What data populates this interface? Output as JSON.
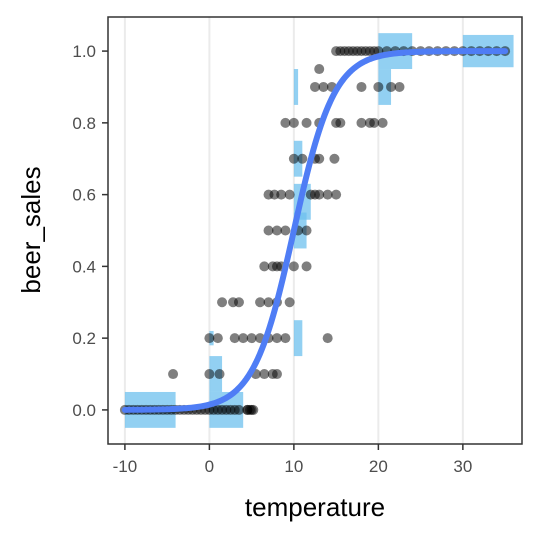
{
  "chart_data": {
    "type": "scatter",
    "title": "",
    "xlabel": "temperature",
    "ylabel": "beer_sales",
    "xlim": [
      -12,
      37
    ],
    "ylim": [
      -0.095,
      1.095
    ],
    "x_ticks": [
      -10,
      0,
      10,
      20,
      30
    ],
    "x_tick_labels": [
      "-10",
      "0",
      "10",
      "20",
      "30"
    ],
    "y_ticks": [
      0.0,
      0.2,
      0.4,
      0.6,
      0.8,
      1.0
    ],
    "y_tick_labels": [
      "0.0",
      "0.2",
      "0.4",
      "0.6",
      "0.8",
      "1.0"
    ],
    "grid": "vertical-major",
    "legend": "none",
    "colors": {
      "points": "#000000",
      "curve": "#4f7df5",
      "density_bars": "#6ec0ed",
      "grid": "#ebebeb",
      "panel_border": "#333333"
    },
    "series": [
      {
        "type": "scatter",
        "points": [
          [
            -10,
            0
          ],
          [
            -9.5,
            0
          ],
          [
            -9,
            0
          ],
          [
            -8.5,
            0
          ],
          [
            -8,
            0
          ],
          [
            -7.5,
            0
          ],
          [
            -7,
            0
          ],
          [
            -6.5,
            0
          ],
          [
            -6,
            0
          ],
          [
            -5.5,
            0
          ],
          [
            -5,
            0
          ],
          [
            -4.5,
            0
          ],
          [
            -4,
            0
          ],
          [
            -3.5,
            0
          ],
          [
            -3,
            0
          ],
          [
            -2.5,
            0
          ],
          [
            -2,
            0
          ],
          [
            -1.5,
            0
          ],
          [
            -1,
            0
          ],
          [
            -0.5,
            0
          ],
          [
            0,
            0
          ],
          [
            0.5,
            0
          ],
          [
            1,
            0
          ],
          [
            1.5,
            0
          ],
          [
            2,
            0
          ],
          [
            2.5,
            0
          ],
          [
            3,
            0
          ],
          [
            3.5,
            0
          ],
          [
            4.5,
            0
          ],
          [
            5,
            0
          ],
          [
            -4.3,
            0.1
          ],
          [
            0,
            0.1
          ],
          [
            1.2,
            0.1
          ],
          [
            5.5,
            0.1
          ],
          [
            6.5,
            0.1
          ],
          [
            7.5,
            0.1
          ],
          [
            8,
            0.1
          ],
          [
            0,
            0.2
          ],
          [
            1,
            0.2
          ],
          [
            3,
            0.2
          ],
          [
            4,
            0.2
          ],
          [
            5,
            0.2
          ],
          [
            6,
            0.2
          ],
          [
            7,
            0.2
          ],
          [
            8,
            0.2
          ],
          [
            9,
            0.2
          ],
          [
            1.5,
            0.3
          ],
          [
            2.8,
            0.3
          ],
          [
            3.5,
            0.3
          ],
          [
            6,
            0.3
          ],
          [
            7,
            0.3
          ],
          [
            8,
            0.3
          ],
          [
            9.5,
            0.3
          ],
          [
            6.5,
            0.4
          ],
          [
            7.5,
            0.4
          ],
          [
            8,
            0.4
          ],
          [
            8.5,
            0.4
          ],
          [
            10,
            0.4
          ],
          [
            11.5,
            0.4
          ],
          [
            7,
            0.5
          ],
          [
            8,
            0.5
          ],
          [
            9,
            0.5
          ],
          [
            10.5,
            0.5
          ],
          [
            11.5,
            0.5
          ],
          [
            7,
            0.6
          ],
          [
            7.7,
            0.6
          ],
          [
            8.5,
            0.6
          ],
          [
            9.5,
            0.6
          ],
          [
            12,
            0.6
          ],
          [
            12.5,
            0.6
          ],
          [
            13,
            0.6
          ],
          [
            14,
            0.6
          ],
          [
            15,
            0.6
          ],
          [
            10,
            0.7
          ],
          [
            11,
            0.7
          ],
          [
            12.5,
            0.7
          ],
          [
            13,
            0.7
          ],
          [
            14.8,
            0.7
          ],
          [
            9,
            0.8
          ],
          [
            10,
            0.8
          ],
          [
            11.5,
            0.8
          ],
          [
            13,
            0.8
          ],
          [
            15,
            0.8
          ],
          [
            12.5,
            0.9
          ],
          [
            13.5,
            0.9
          ],
          [
            14.5,
            0.9
          ],
          [
            15,
            1
          ],
          [
            15.5,
            1
          ],
          [
            16,
            1
          ],
          [
            16.5,
            1
          ],
          [
            17,
            1
          ],
          [
            17.5,
            1
          ],
          [
            18,
            1
          ],
          [
            18.5,
            1
          ],
          [
            19,
            1
          ],
          [
            19.5,
            1
          ],
          [
            20,
            1
          ],
          [
            21,
            1
          ],
          [
            22,
            1
          ],
          [
            23,
            1
          ],
          [
            24,
            1
          ],
          [
            25,
            1
          ],
          [
            26,
            1
          ],
          [
            27,
            1
          ],
          [
            28,
            1
          ],
          [
            29,
            1
          ],
          [
            30,
            1
          ],
          [
            31,
            1
          ],
          [
            32,
            1
          ],
          [
            33,
            1
          ],
          [
            34,
            1
          ],
          [
            35,
            1
          ],
          [
            14,
            0.2
          ],
          [
            15.5,
            0.8
          ],
          [
            18,
            0.8
          ],
          [
            19,
            0.8
          ],
          [
            19.5,
            0.8
          ],
          [
            20.5,
            0.8
          ],
          [
            13,
            0.95
          ],
          [
            18,
            0.9
          ],
          [
            20,
            0.9
          ],
          [
            21.5,
            0.9
          ],
          [
            22.5,
            0.9
          ],
          [
            4.5,
            0.0
          ],
          [
            4.8,
            0.0
          ],
          [
            5.2,
            0.0
          ]
        ]
      },
      {
        "type": "line",
        "name": "",
        "fit": "logistic",
        "x_range": [
          -10,
          35
        ],
        "midpoint": 10,
        "slope": 0.42
      },
      {
        "type": "rect",
        "bars": [
          {
            "x0": -10,
            "x1": -4,
            "y0": -0.05,
            "y1": 0.05
          },
          {
            "x0": 0,
            "x1": 4,
            "y0": -0.05,
            "y1": 0.05
          },
          {
            "x0": 0,
            "x1": 1.5,
            "y0": 0.05,
            "y1": 0.15
          },
          {
            "x0": 0,
            "x1": 0.5,
            "y0": 0.18,
            "y1": 0.22
          },
          {
            "x0": 10,
            "x1": 11,
            "y0": 0.65,
            "y1": 0.75
          },
          {
            "x0": 10,
            "x1": 12,
            "y0": 0.53,
            "y1": 0.63
          },
          {
            "x0": 10,
            "x1": 11.5,
            "y0": 0.45,
            "y1": 0.55
          },
          {
            "x0": 10,
            "x1": 11,
            "y0": 0.15,
            "y1": 0.25
          },
          {
            "x0": 10,
            "x1": 10.5,
            "y0": 0.85,
            "y1": 0.95
          },
          {
            "x0": 20,
            "x1": 24,
            "y0": 0.95,
            "y1": 1.05
          },
          {
            "x0": 20,
            "x1": 21.5,
            "y0": 0.85,
            "y1": 0.95
          },
          {
            "x0": 30,
            "x1": 36,
            "y0": 0.955,
            "y1": 1.045
          }
        ]
      }
    ]
  }
}
